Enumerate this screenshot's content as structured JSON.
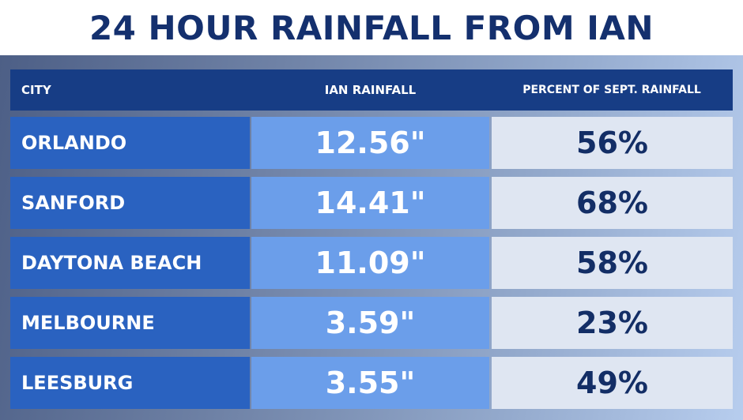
{
  "title": "24 HOUR RAINFALL FROM IAN",
  "table": {
    "headers": {
      "city": "CITY",
      "rainfall": "IAN RAINFALL",
      "percent": "PERCENT OF SEPT. RAINFALL"
    },
    "rows": [
      {
        "city": "ORLANDO",
        "rainfall": "12.56\"",
        "percent": "56%"
      },
      {
        "city": "SANFORD",
        "rainfall": "14.41\"",
        "percent": "68%"
      },
      {
        "city": "DAYTONA BEACH",
        "rainfall": "11.09\"",
        "percent": "58%"
      },
      {
        "city": "MELBOURNE",
        "rainfall": "3.59\"",
        "percent": "23%"
      },
      {
        "city": "LEESBURG",
        "rainfall": "3.55\"",
        "percent": "49%"
      }
    ]
  },
  "colors": {
    "title": "#14306e",
    "header_bg": "#173d85",
    "city_bg": "#2a62c0",
    "rainfall_bg": "#6b9eea",
    "percent_bg": "#dfe6f2",
    "percent_text": "#132e66"
  }
}
